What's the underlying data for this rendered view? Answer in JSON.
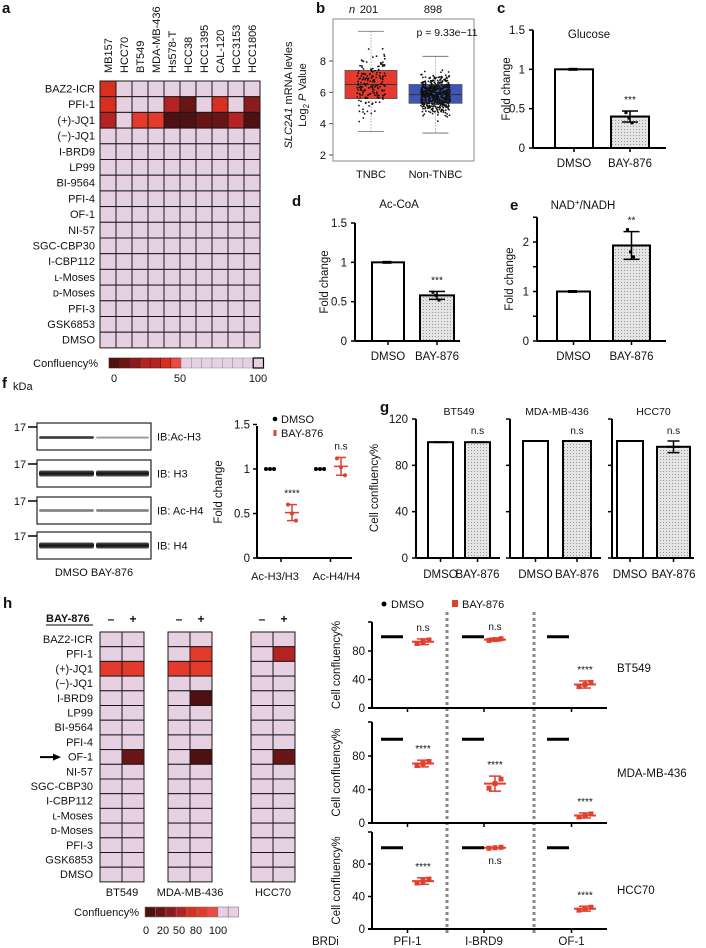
{
  "panel_labels": {
    "a": "a",
    "b": "b",
    "c": "c",
    "d": "d",
    "e": "e",
    "f": "f",
    "g": "g",
    "h": "h"
  },
  "heatmap_a": {
    "cell_lines": [
      "MB157",
      "HCC70",
      "BT549",
      "MDA-MB-436",
      "Hs578-T",
      "HCC38",
      "HCC1395",
      "CAL-120",
      "HCC3153",
      "HCC1806"
    ],
    "compounds": [
      "BAZ2-ICR",
      "PFI-1",
      "(+)-JQ1",
      "(−)-JQ1",
      "I-BRD9",
      "LP99",
      "BI-9564",
      "PFI-4",
      "OF-1",
      "NI-57",
      "SGC-CBP30",
      "I-CBP112",
      "ʟ-Moses",
      "ᴅ-Moses",
      "PFI-3",
      "GSK6853",
      "DMSO"
    ],
    "confluency": [
      [
        40,
        100,
        100,
        100,
        100,
        100,
        100,
        100,
        100,
        100
      ],
      [
        40,
        100,
        100,
        100,
        35,
        15,
        100,
        40,
        100,
        25
      ],
      [
        30,
        100,
        45,
        45,
        5,
        0,
        15,
        10,
        35,
        5
      ],
      [
        100,
        100,
        100,
        100,
        100,
        100,
        100,
        100,
        100,
        100
      ],
      [
        100,
        100,
        100,
        100,
        100,
        100,
        100,
        100,
        100,
        100
      ],
      [
        100,
        100,
        100,
        100,
        100,
        100,
        100,
        100,
        100,
        100
      ],
      [
        100,
        100,
        100,
        100,
        100,
        100,
        100,
        100,
        100,
        100
      ],
      [
        100,
        100,
        100,
        100,
        100,
        100,
        100,
        100,
        100,
        100
      ],
      [
        100,
        100,
        100,
        100,
        100,
        100,
        100,
        100,
        100,
        100
      ],
      [
        100,
        100,
        100,
        100,
        100,
        100,
        100,
        100,
        100,
        100
      ],
      [
        100,
        100,
        100,
        100,
        100,
        100,
        100,
        100,
        100,
        100
      ],
      [
        100,
        100,
        100,
        100,
        100,
        100,
        100,
        100,
        100,
        100
      ],
      [
        100,
        100,
        100,
        100,
        100,
        100,
        100,
        100,
        100,
        100
      ],
      [
        100,
        100,
        100,
        100,
        100,
        100,
        100,
        100,
        100,
        100
      ],
      [
        100,
        100,
        100,
        100,
        100,
        100,
        100,
        100,
        100,
        100
      ],
      [
        100,
        100,
        100,
        100,
        100,
        100,
        100,
        100,
        100,
        100
      ],
      [
        100,
        100,
        100,
        100,
        100,
        100,
        100,
        100,
        100,
        100
      ]
    ],
    "legend_title": "Confluency%",
    "legend_ticks": [
      "0",
      "50",
      "100"
    ]
  },
  "colors": {
    "low": "#4e1010",
    "mid": "#ec4a42",
    "high": "#e7d0e1",
    "tnbc": "#e53a2e",
    "non_tnbc": "#3f55b5",
    "bay": "#e0402e",
    "dmso": "#000000"
  },
  "chart_data": {
    "b": {
      "type": "box",
      "n_label": "n",
      "n": [
        "201",
        "898"
      ],
      "groups": [
        "TNBC",
        "Non-TNBC"
      ],
      "p_text": "p = 9.33e−11",
      "ylabel": {
        "gene": "SLC2A1",
        "rest": " mRNA levles",
        "log": "Log",
        "sub": "2",
        "p": "P",
        "value": " Value"
      },
      "yticks": [
        "2",
        "4",
        "6",
        "8"
      ],
      "boxes": [
        {
          "q1": 5.6,
          "median": 6.5,
          "q3": 7.4,
          "lo": 3.5,
          "hi": 9.9
        },
        {
          "q1": 5.3,
          "median": 5.85,
          "q3": 6.5,
          "lo": 3.4,
          "hi": 8.3
        }
      ]
    },
    "c": {
      "type": "bar",
      "title": "Glucose",
      "ylabel": "Fold change",
      "yticks": [
        "0",
        "0.5",
        "1",
        "1.5"
      ],
      "categories": [
        "DMSO",
        "BAY-876"
      ],
      "values": [
        1,
        0.4
      ],
      "errors": [
        0,
        0.07
      ],
      "points": [
        [
          1,
          1,
          1
        ],
        [
          0.45,
          0.38,
          0.32
        ]
      ],
      "sig": [
        "",
        "***"
      ]
    },
    "d": {
      "type": "bar",
      "title": "Ac-CoA",
      "ylabel": "Fold change",
      "yticks": [
        "0",
        "0.5",
        "1",
        "1.5"
      ],
      "categories": [
        "DMSO",
        "BAY-876"
      ],
      "values": [
        1,
        0.58
      ],
      "errors": [
        0,
        0.05
      ],
      "points": [
        [
          1,
          1,
          1
        ],
        [
          0.62,
          0.58,
          0.52
        ]
      ],
      "sig": [
        "",
        "***"
      ]
    },
    "e": {
      "type": "bar",
      "title": {
        "main": "NAD",
        "sup": "+",
        "rest": "/NADH"
      },
      "ylabel": "Fold change",
      "yticks": [
        "0",
        "1",
        "2"
      ],
      "categories": [
        "DMSO",
        "BAY-876"
      ],
      "values": [
        1,
        1.93
      ],
      "errors": [
        0,
        0.28
      ],
      "points": [
        [
          1,
          1,
          1
        ],
        [
          2.25,
          1.8,
          1.7
        ]
      ],
      "sig": [
        "",
        "**"
      ]
    },
    "f": {
      "type": "scatter",
      "ylabel": "Fold change",
      "yticks": [
        "0",
        "0.5",
        "1",
        "1.5"
      ],
      "legend": [
        "DMSO",
        "BAY-876"
      ],
      "categories": [
        "Ac-H3/H3",
        "Ac-H4/H4"
      ],
      "series": [
        {
          "name": "DMSO",
          "points": [
            [
              1,
              1,
              1
            ],
            [
              1,
              1,
              1
            ]
          ],
          "mean": [
            1,
            1
          ],
          "err": [
            0,
            0
          ]
        },
        {
          "name": "BAY-876",
          "points": [
            [
              0.6,
              0.5,
              0.42
            ],
            [
              1.12,
              1.02,
              0.93
            ]
          ],
          "mean": [
            0.51,
            1.03
          ],
          "err": [
            0.09,
            0.1
          ]
        }
      ],
      "sig": [
        "****",
        "n.s"
      ]
    },
    "g": {
      "type": "bar",
      "ylabel": "Cell confluency%",
      "yticks": [
        "0",
        "40",
        "80",
        "120"
      ],
      "panels": [
        {
          "title": "BT549",
          "categories": [
            "DMSO",
            "BAY-876"
          ],
          "values": [
            100,
            100
          ],
          "errors": [
            1,
            1
          ],
          "sig": "n.s"
        },
        {
          "title": "MDA-MB-436",
          "categories": [
            "DMSO",
            "BAY-876"
          ],
          "values": [
            101,
            101
          ],
          "errors": [
            1,
            1
          ],
          "sig": "n.s"
        },
        {
          "title": "HCC70",
          "categories": [
            "DMSO",
            "BAY-876"
          ],
          "values": [
            101,
            96
          ],
          "errors": [
            1,
            5
          ],
          "sig": "n.s"
        }
      ]
    },
    "h_right": {
      "type": "scatter",
      "ylabel": "Cell confluency%",
      "yticks": [
        "0",
        "40",
        "80"
      ],
      "legend": [
        "DMSO",
        "BAY-876"
      ],
      "xlabel": "BRDi",
      "categories": [
        "PFI-1",
        "I-BRD9",
        "OF-1"
      ],
      "rows": [
        {
          "cell_line": "BT549",
          "dmso": [
            100,
            100,
            100
          ],
          "bay": [
            93,
            96,
            33
          ],
          "err": [
            4,
            2,
            5
          ],
          "sig": [
            "n.s",
            "n.s",
            "****"
          ]
        },
        {
          "cell_line": "MDA-MB-436",
          "dmso": [
            100,
            100,
            100
          ],
          "bay": [
            71,
            47,
            9
          ],
          "err": [
            4,
            9,
            3
          ],
          "sig": [
            "****",
            "****",
            "****"
          ]
        },
        {
          "cell_line": "HCC70",
          "dmso": [
            100,
            100,
            100
          ],
          "bay": [
            59,
            100,
            25
          ],
          "err": [
            4,
            1,
            3
          ],
          "sig": [
            "****",
            "n.s",
            "****"
          ]
        }
      ]
    }
  },
  "blot_f": {
    "kda": "kDa",
    "marker": "17",
    "bands": [
      "IB:Ac-H3",
      "IB: H3",
      "IB: Ac-H4",
      "IB: H4"
    ],
    "lanes": "DMSO BAY-876"
  },
  "heatmap_h": {
    "treatment": "BAY-876",
    "minus": "–",
    "plus": "+",
    "cell_lines": [
      "BT549",
      "MDA-MB-436",
      "HCC70"
    ],
    "compounds": [
      "BAZ2-ICR",
      "PFI-1",
      "(+)-JQ1",
      "(−)-JQ1",
      "I-BRD9",
      "LP99",
      "BI-9564",
      "PFI-4",
      "OF-1",
      "NI-57",
      "SGC-CBP30",
      "I-CBP112",
      "ʟ-Moses",
      "ᴅ-Moses",
      "PFI-3",
      "GSK6853",
      "DMSO"
    ],
    "highlight_compound": "OF-1",
    "confluency": [
      [
        [
          100,
          100
        ],
        [
          100,
          100
        ],
        [
          100,
          100
        ]
      ],
      [
        [
          100,
          100
        ],
        [
          100,
          45
        ],
        [
          100,
          35
        ]
      ],
      [
        [
          45,
          45
        ],
        [
          45,
          45
        ],
        [
          100,
          100
        ]
      ],
      [
        [
          100,
          100
        ],
        [
          100,
          100
        ],
        [
          100,
          100
        ]
      ],
      [
        [
          100,
          100
        ],
        [
          100,
          5
        ],
        [
          100,
          100
        ]
      ],
      [
        [
          100,
          100
        ],
        [
          100,
          100
        ],
        [
          100,
          100
        ]
      ],
      [
        [
          100,
          100
        ],
        [
          100,
          100
        ],
        [
          100,
          100
        ]
      ],
      [
        [
          100,
          100
        ],
        [
          100,
          100
        ],
        [
          100,
          100
        ]
      ],
      [
        [
          100,
          15
        ],
        [
          100,
          5
        ],
        [
          100,
          8
        ]
      ],
      [
        [
          100,
          100
        ],
        [
          100,
          100
        ],
        [
          100,
          100
        ]
      ],
      [
        [
          100,
          100
        ],
        [
          100,
          100
        ],
        [
          100,
          100
        ]
      ],
      [
        [
          100,
          100
        ],
        [
          100,
          100
        ],
        [
          100,
          100
        ]
      ],
      [
        [
          100,
          100
        ],
        [
          100,
          100
        ],
        [
          100,
          100
        ]
      ],
      [
        [
          100,
          100
        ],
        [
          100,
          100
        ],
        [
          100,
          100
        ]
      ],
      [
        [
          100,
          100
        ],
        [
          100,
          100
        ],
        [
          100,
          100
        ]
      ],
      [
        [
          100,
          100
        ],
        [
          100,
          100
        ],
        [
          100,
          100
        ]
      ],
      [
        [
          100,
          100
        ],
        [
          100,
          100
        ],
        [
          100,
          100
        ]
      ]
    ],
    "legend_title": "Confluency%",
    "legend_ticks": [
      "0",
      "20",
      "50",
      "80",
      "100"
    ]
  }
}
